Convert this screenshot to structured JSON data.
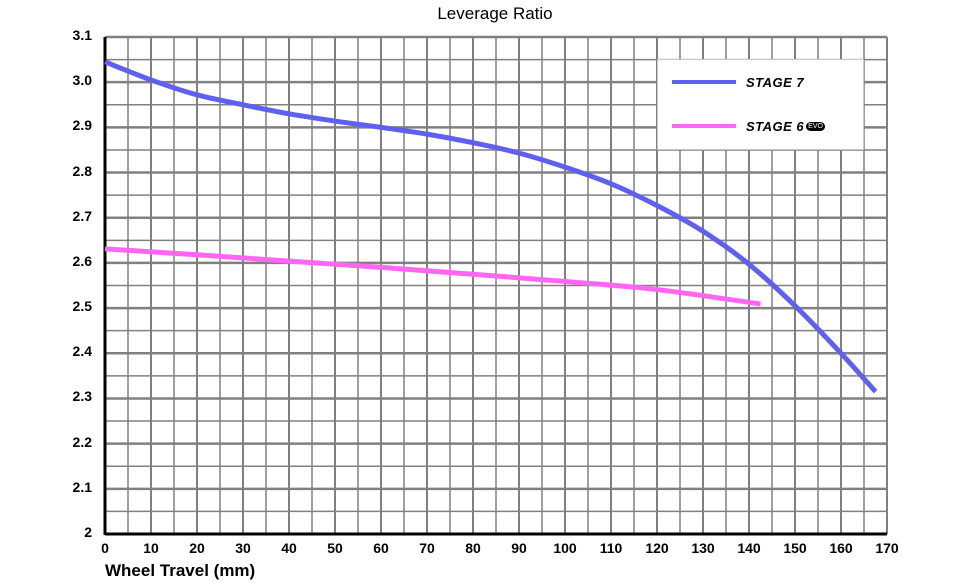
{
  "chart_data": {
    "type": "line",
    "title": "Leverage Ratio",
    "xlabel": "Wheel Travel (mm)",
    "ylabel": "",
    "xlim": [
      0,
      170
    ],
    "ylim": [
      2.0,
      3.1
    ],
    "x_ticks": [
      "0",
      "10",
      "20",
      "30",
      "40",
      "50",
      "60",
      "70",
      "80",
      "90",
      "100",
      "110",
      "120",
      "130",
      "140",
      "150",
      "160",
      "170"
    ],
    "y_ticks": [
      "2",
      "2.1",
      "2.2",
      "2.3",
      "2.4",
      "2.5",
      "2.6",
      "2.7",
      "2.8",
      "2.9",
      "3.0",
      "3.1"
    ],
    "grid": true,
    "legend_position": "top-right",
    "series": [
      {
        "name": "STAGE 7",
        "color": "#6060f0",
        "x": [
          0,
          10,
          20,
          30,
          40,
          50,
          60,
          70,
          80,
          90,
          100,
          110,
          120,
          130,
          140,
          150,
          160,
          167.5
        ],
        "values": [
          3.045,
          3.005,
          2.972,
          2.95,
          2.93,
          2.914,
          2.9,
          2.885,
          2.866,
          2.843,
          2.812,
          2.775,
          2.727,
          2.67,
          2.597,
          2.505,
          2.4,
          2.315
        ]
      },
      {
        "name": "STAGE 6",
        "badge": "EVO",
        "color": "#ff66f2",
        "x": [
          0,
          20,
          40,
          60,
          80,
          100,
          120,
          142.5
        ],
        "values": [
          2.631,
          2.618,
          2.604,
          2.59,
          2.575,
          2.559,
          2.541,
          2.509
        ]
      }
    ]
  },
  "legend": {
    "items": [
      {
        "label": "STAGE 7",
        "color": "#6060f0"
      },
      {
        "label": "STAGE 6",
        "badge": "EVO",
        "color": "#ff66f2"
      }
    ]
  }
}
